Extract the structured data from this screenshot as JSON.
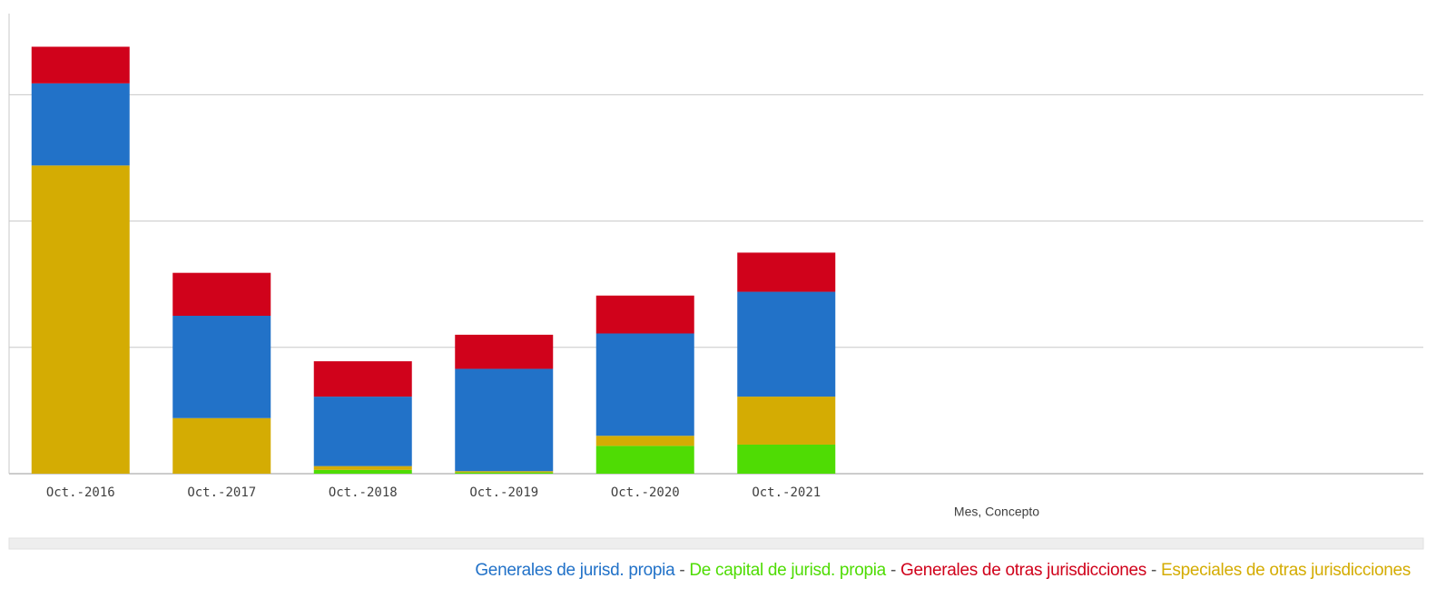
{
  "chart_data": {
    "type": "stacked-bar",
    "x_label": "Mes, Concepto",
    "categories": [
      "Oct.-2016",
      "Oct.-2017",
      "Oct.-2018",
      "Oct.-2019",
      "Oct.-2020",
      "Oct.-2021"
    ],
    "series": [
      {
        "name": "Generales de jurisd. propia",
        "color": "#2272c8",
        "values": [
          0.65,
          0.81,
          0.55,
          0.81,
          0.81,
          0.83
        ]
      },
      {
        "name": "De capital de jurisd. propia",
        "color": "#4fdc04",
        "values": [
          0,
          0,
          0.03,
          0.01,
          0.22,
          0.23
        ]
      },
      {
        "name": "Generales de otras jurisdicciones",
        "color": "#d0021b",
        "values": [
          0.29,
          0.34,
          0.28,
          0.27,
          0.3,
          0.31
        ]
      },
      {
        "name": "Especiales de otras jurisdicciones",
        "color": "#d4ac03",
        "values": [
          2.44,
          0.44,
          0.03,
          0.01,
          0.08,
          0.38
        ]
      }
    ],
    "stack_order": [
      1,
      3,
      0,
      2
    ],
    "legend_separators": [
      "-",
      "-",
      "-"
    ],
    "ylim": [
      0,
      3.75
    ],
    "yticks": [
      0,
      1,
      2,
      3
    ],
    "grid": true
  }
}
